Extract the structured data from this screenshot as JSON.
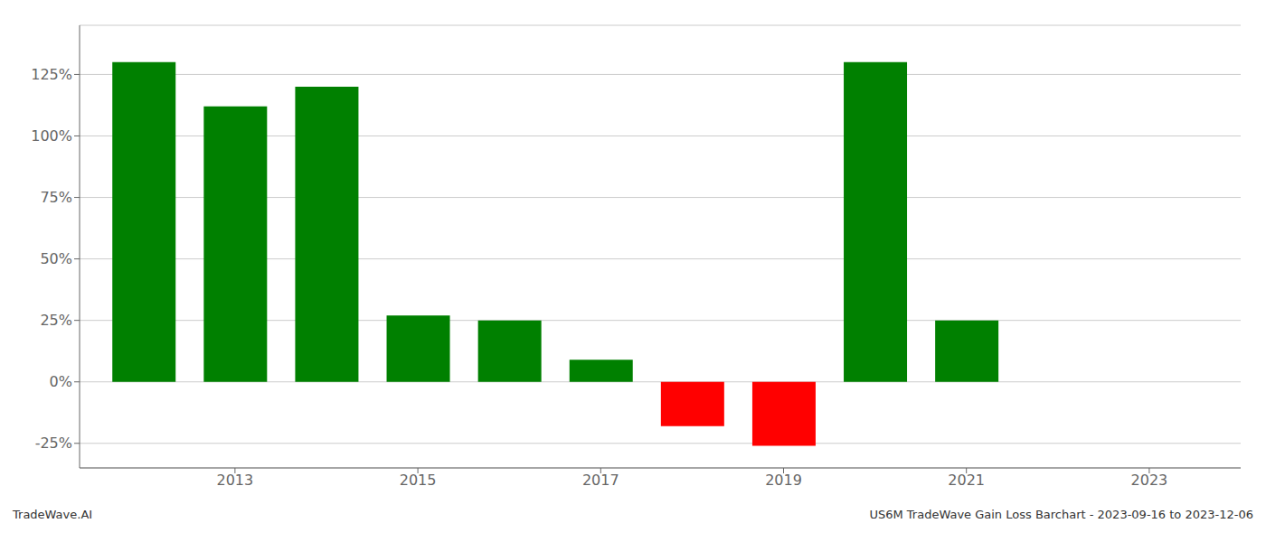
{
  "chart_data": {
    "type": "bar",
    "x": [
      2012,
      2013,
      2014,
      2015,
      2016,
      2017,
      2018,
      2019,
      2020,
      2021,
      2022
    ],
    "values": [
      1.3,
      1.12,
      1.2,
      0.27,
      0.25,
      0.09,
      -0.18,
      -0.26,
      1.3,
      0.25,
      0.0
    ],
    "colors": [
      "#008000",
      "#008000",
      "#008000",
      "#008000",
      "#008000",
      "#008000",
      "#ff0000",
      "#ff0000",
      "#008000",
      "#008000",
      "#008000"
    ],
    "xlim": [
      2011.3,
      2024.0
    ],
    "xticks": [
      2013,
      2015,
      2017,
      2019,
      2021,
      2023
    ],
    "ylim": [
      -0.35,
      1.45
    ],
    "yticks": [
      {
        "value": -0.25,
        "label": "-25%"
      },
      {
        "value": 0.0,
        "label": "0%"
      },
      {
        "value": 0.25,
        "label": "25%"
      },
      {
        "value": 0.5,
        "label": "50%"
      },
      {
        "value": 0.75,
        "label": "75%"
      },
      {
        "value": 1.0,
        "label": "100%"
      },
      {
        "value": 1.25,
        "label": "125%"
      }
    ],
    "grid": true,
    "annotations": [
      "TradeWave.AI",
      "US6M TradeWave Gain Loss Barchart - 2023-09-16 to 2023-12-06"
    ]
  }
}
